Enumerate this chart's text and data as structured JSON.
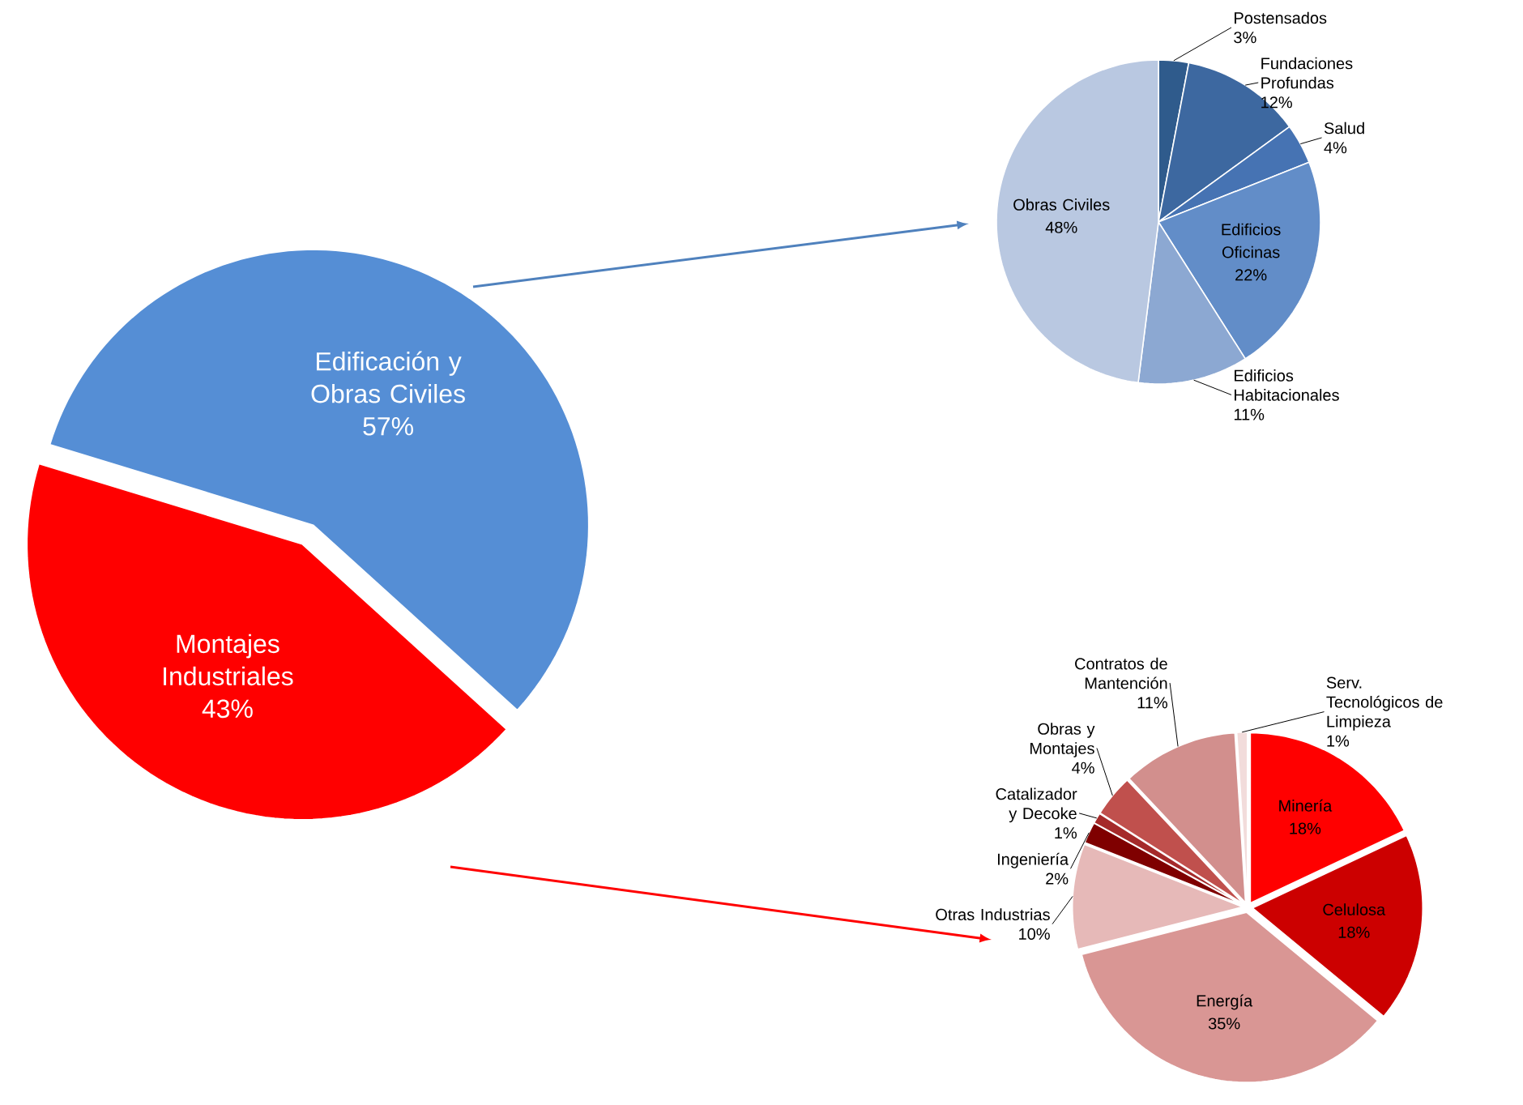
{
  "chart_data": [
    {
      "type": "pie",
      "categories": [
        "Edificación y Obras Civiles",
        "Montajes Industriales"
      ],
      "values": [
        57,
        43
      ],
      "value_labels": [
        "57%",
        "43%"
      ],
      "colors": [
        "#558ed5",
        "#ff0000"
      ]
    },
    {
      "type": "pie",
      "categories": [
        "Postensados",
        "Fundaciones Profundas",
        "Salud",
        "Edificios Oficinas",
        "Edificios Habitacionales",
        "Obras Civiles"
      ],
      "values": [
        3,
        12,
        4,
        22,
        11,
        48
      ],
      "value_labels": [
        "3%",
        "12%",
        "4%",
        "22%",
        "11%",
        "48%"
      ],
      "colors": [
        "#2f5b8c",
        "#3d68a0",
        "#4673b3",
        "#628dc8",
        "#8ca8d2",
        "#b9c8e1"
      ]
    },
    {
      "type": "pie",
      "categories": [
        "Minería",
        "Celulosa",
        "Energía",
        "Otras Industrias",
        "Ingeniería",
        "Catalizador y Decoke",
        "Obras y Montajes",
        "Contratos de Mantención",
        "Serv. Tecnológicos de Limpieza"
      ],
      "values": [
        18,
        18,
        35,
        10,
        2,
        1,
        4,
        11,
        1
      ],
      "value_labels": [
        "18%",
        "18%",
        "35%",
        "10%",
        "2%",
        "1%",
        "4%",
        "11%",
        "1%"
      ],
      "colors": [
        "#ff0000",
        "#cc0000",
        "#d99694",
        "#e6b9b8",
        "#7f0000",
        "#a52a2a",
        "#c0504d",
        "#d28f8d",
        "#f2dcdb"
      ]
    }
  ]
}
